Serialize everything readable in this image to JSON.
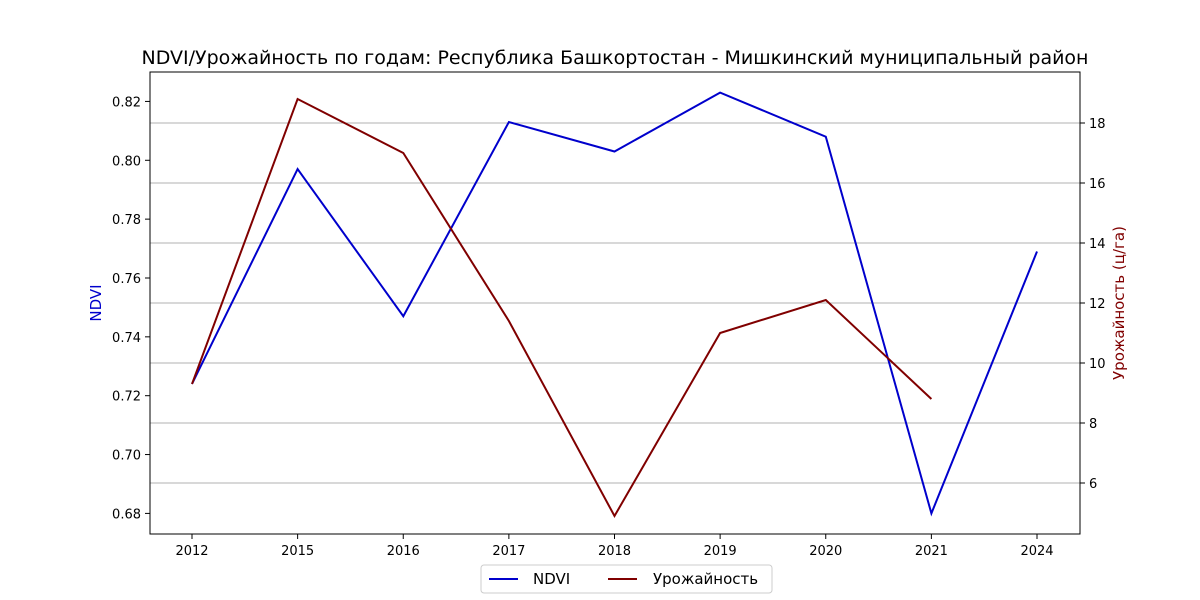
{
  "chart_data": {
    "type": "line",
    "title": "NDVI/Урожайность по годам: Республика Башкортостан - Мишкинский муниципальный район",
    "categories": [
      "2012",
      "2015",
      "2016",
      "2017",
      "2018",
      "2019",
      "2020",
      "2021",
      "2024"
    ],
    "y_left": {
      "label": "NDVI",
      "color": "#0000cc",
      "ylim": [
        0.673,
        0.83
      ],
      "ticks": [
        0.68,
        0.7,
        0.72,
        0.74,
        0.76,
        0.78,
        0.8,
        0.82
      ],
      "tick_labels": [
        "0.68",
        "0.70",
        "0.72",
        "0.74",
        "0.76",
        "0.78",
        "0.80",
        "0.82"
      ]
    },
    "y_right": {
      "label": "Урожайность (ц/га)",
      "color": "#800000",
      "ylim": [
        4.3,
        19.7
      ],
      "ticks": [
        6,
        8,
        10,
        12,
        14,
        16,
        18
      ],
      "tick_labels": [
        "6",
        "8",
        "10",
        "12",
        "14",
        "16",
        "18"
      ]
    },
    "grid": "horizontal lines at right-axis ticks",
    "legend_placement": "bottom-center",
    "series": [
      {
        "name": "NDVI",
        "axis": "left",
        "color": "#0000cc",
        "values": [
          0.724,
          0.797,
          0.747,
          0.813,
          0.803,
          0.823,
          0.808,
          0.68,
          0.769
        ]
      },
      {
        "name": "Урожайность",
        "axis": "right",
        "color": "#800000",
        "values": [
          9.3,
          18.8,
          17.0,
          11.4,
          4.9,
          11.0,
          12.1,
          null,
          null
        ],
        "extra_points": [
          {
            "x_between": [
              "2020",
              "2021"
            ],
            "note": "series continues to 2021"
          }
        ]
      }
    ]
  }
}
